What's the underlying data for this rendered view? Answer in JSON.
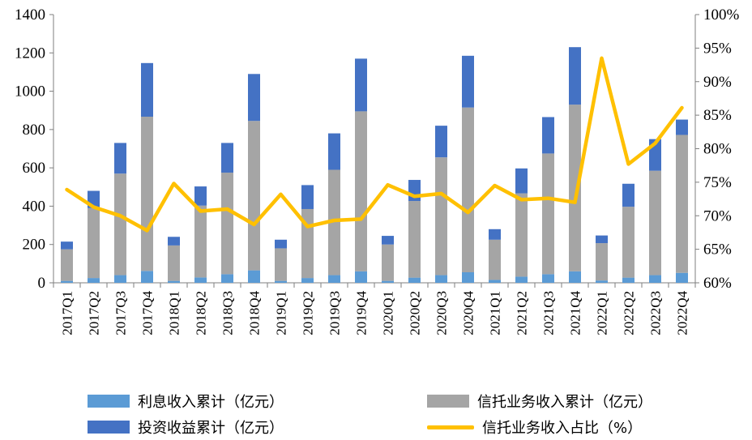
{
  "chart_data": {
    "type": "bar",
    "stacked": true,
    "categories": [
      "2017Q1",
      "2017Q2",
      "2017Q3",
      "2017Q4",
      "2018Q1",
      "2018Q2",
      "2018Q3",
      "2018Q4",
      "2019Q1",
      "2019Q2",
      "2019Q3",
      "2019Q4",
      "2020Q1",
      "2020Q2",
      "2020Q3",
      "2020Q4",
      "2021Q1",
      "2021Q2",
      "2021Q3",
      "2021Q4",
      "2022Q1",
      "2022Q2",
      "2022Q3",
      "2022Q4"
    ],
    "series": [
      {
        "name": "利息收入累计（亿元）",
        "type": "bar",
        "axis": "left",
        "color": "#5b9bd5",
        "values": [
          10,
          25,
          40,
          62,
          10,
          28,
          45,
          65,
          10,
          25,
          40,
          60,
          10,
          27,
          40,
          55,
          15,
          32,
          45,
          60,
          12,
          27,
          40,
          52
        ]
      },
      {
        "name": "信托业务收入累计（亿元）",
        "type": "bar",
        "axis": "left",
        "color": "#a5a5a5",
        "values": [
          165,
          365,
          530,
          805,
          185,
          375,
          530,
          780,
          170,
          360,
          550,
          835,
          190,
          400,
          615,
          860,
          210,
          435,
          630,
          870,
          195,
          370,
          545,
          720
        ]
      },
      {
        "name": "投资收益累计（亿元）",
        "type": "bar",
        "axis": "left",
        "color": "#4472c4",
        "values": [
          40,
          90,
          160,
          280,
          45,
          100,
          155,
          245,
          45,
          125,
          190,
          275,
          45,
          110,
          165,
          270,
          55,
          130,
          190,
          300,
          40,
          120,
          165,
          80
        ]
      },
      {
        "name": "信托业务收入占比（%）",
        "type": "line",
        "axis": "right",
        "color": "#ffc000",
        "values": [
          73.9,
          71.3,
          70.0,
          67.8,
          74.8,
          70.7,
          71.0,
          68.7,
          73.2,
          68.4,
          69.3,
          69.5,
          74.6,
          72.9,
          73.3,
          70.5,
          74.5,
          72.4,
          72.6,
          72.0,
          93.5,
          77.7,
          80.8,
          86.1
        ]
      }
    ],
    "y_left": {
      "min": 0,
      "max": 1400,
      "step": 200,
      "ticks": [
        "0",
        "200",
        "400",
        "600",
        "800",
        "1000",
        "1200",
        "1400"
      ]
    },
    "y_right": {
      "min": 60,
      "max": 100,
      "step": 5,
      "ticks": [
        "60%",
        "65%",
        "70%",
        "75%",
        "80%",
        "85%",
        "90%",
        "95%",
        "100%"
      ]
    },
    "legend_position": "bottom",
    "grid": false
  },
  "legend": {
    "items": [
      {
        "label": "利息收入累计（亿元）",
        "color": "#5b9bd5",
        "kind": "bar"
      },
      {
        "label": "信托业务收入累计（亿元）",
        "color": "#a5a5a5",
        "kind": "bar"
      },
      {
        "label": "投资收益累计（亿元）",
        "color": "#4472c4",
        "kind": "bar"
      },
      {
        "label": "信托业务收入占比（%）",
        "color": "#ffc000",
        "kind": "line"
      }
    ]
  }
}
